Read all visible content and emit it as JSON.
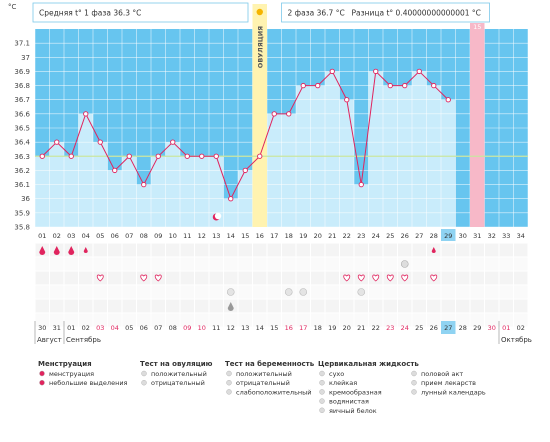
{
  "header": {
    "unit": "°C",
    "phase1_label": "Средняя t° 1 фаза",
    "phase1_value": "36.3 °C",
    "phase2_label": "2 фаза",
    "phase2_value": "36.7 °C",
    "diff_label": "Разница t°",
    "diff_value": "0.40000000000001 °C"
  },
  "chart_data": {
    "type": "line",
    "title": "",
    "xlabel": "",
    "ylabel": "°C",
    "ylim": [
      35.8,
      37.2
    ],
    "yticks": [
      "35.8",
      "35.9",
      "36",
      "36.1",
      "36.2",
      "36.3",
      "36.4",
      "36.5",
      "36.6",
      "36.7",
      "36.8",
      "36.9",
      "37",
      "37.1"
    ],
    "cycle_days": [
      "01",
      "02",
      "03",
      "04",
      "05",
      "06",
      "07",
      "08",
      "09",
      "10",
      "11",
      "12",
      "13",
      "14",
      "15",
      "16",
      "17",
      "18",
      "19",
      "20",
      "21",
      "22",
      "23",
      "24",
      "25",
      "26",
      "27",
      "28",
      "29",
      "30",
      "31",
      "32",
      "33",
      "34"
    ],
    "top_days": [
      "01",
      "02",
      "03",
      "04",
      "05",
      "06",
      "07",
      "08",
      "09",
      "10",
      "11",
      "12",
      "13",
      "14",
      "15",
      "16",
      "17",
      "18"
    ],
    "calendar_days": [
      "30",
      "31",
      "01",
      "02",
      "03",
      "04",
      "05",
      "06",
      "07",
      "08",
      "09",
      "10",
      "11",
      "12",
      "13",
      "14",
      "15",
      "16",
      "17",
      "18",
      "19",
      "20",
      "21",
      "22",
      "23",
      "24",
      "25",
      "26",
      "27",
      "28",
      "29",
      "30",
      "01",
      "02"
    ],
    "months": [
      "Август",
      "Сентябрь",
      "Октябрь"
    ],
    "series": [
      {
        "values": [
          36.3,
          36.4,
          36.3,
          36.6,
          36.4,
          36.2,
          36.3,
          36.1,
          36.3,
          36.4,
          36.3,
          36.3,
          36.3,
          36.0,
          36.2,
          36.3,
          36.6,
          36.6,
          36.8,
          36.8,
          36.9,
          36.7,
          36.1,
          36.9,
          36.8,
          36.8,
          36.9,
          36.8,
          36.7
        ]
      }
    ],
    "coverline": 36.3,
    "ovulation_day": 16,
    "ovulation_label": "ОВУЛЯЦИЯ",
    "period_day": 31,
    "current_cycle_day": 29,
    "current_calendar_date": "27",
    "weekend_calendar_indices": [
      4,
      5,
      10,
      11,
      17,
      18,
      24,
      25,
      31,
      32
    ],
    "menstruation_days": [
      1,
      2,
      3
    ],
    "spotting_days": [
      4,
      28
    ],
    "lunar_day": 13,
    "ovulation_test_days": [
      26
    ],
    "intercourse_days": [
      5,
      8,
      9,
      22,
      23,
      24,
      25,
      26,
      28
    ],
    "cervical_days": [
      14,
      18,
      19,
      23
    ],
    "medicine_days": [
      14
    ]
  },
  "colors": {
    "plot_bg": "#67c5ef",
    "bar_fill": "#c9ecfb",
    "line": "#e0245e",
    "coverline": "#c8e6a0",
    "ovulation": "#fff3b0",
    "period": "#f7b8c8",
    "weekend": "#e0245e"
  },
  "legend": {
    "menstruation_title": "Менструация",
    "menstruation_items": [
      "менструация",
      "небольшие выделения"
    ],
    "ovulation_test_title": "Тест на овуляцию",
    "ovulation_test_items": [
      "положительный",
      "отрицательный"
    ],
    "pregnancy_test_title": "Тест на беременность",
    "pregnancy_test_items": [
      "положительный",
      "отрицательный",
      "слабоположительный"
    ],
    "cervical_title": "Цервикальная жидкость",
    "cervical_items": [
      "сухо",
      "клейкая",
      "кремообразная",
      "водянистая",
      "яичный белок"
    ],
    "other_items": [
      "половой акт",
      "прием лекарств",
      "лунный календарь"
    ]
  }
}
